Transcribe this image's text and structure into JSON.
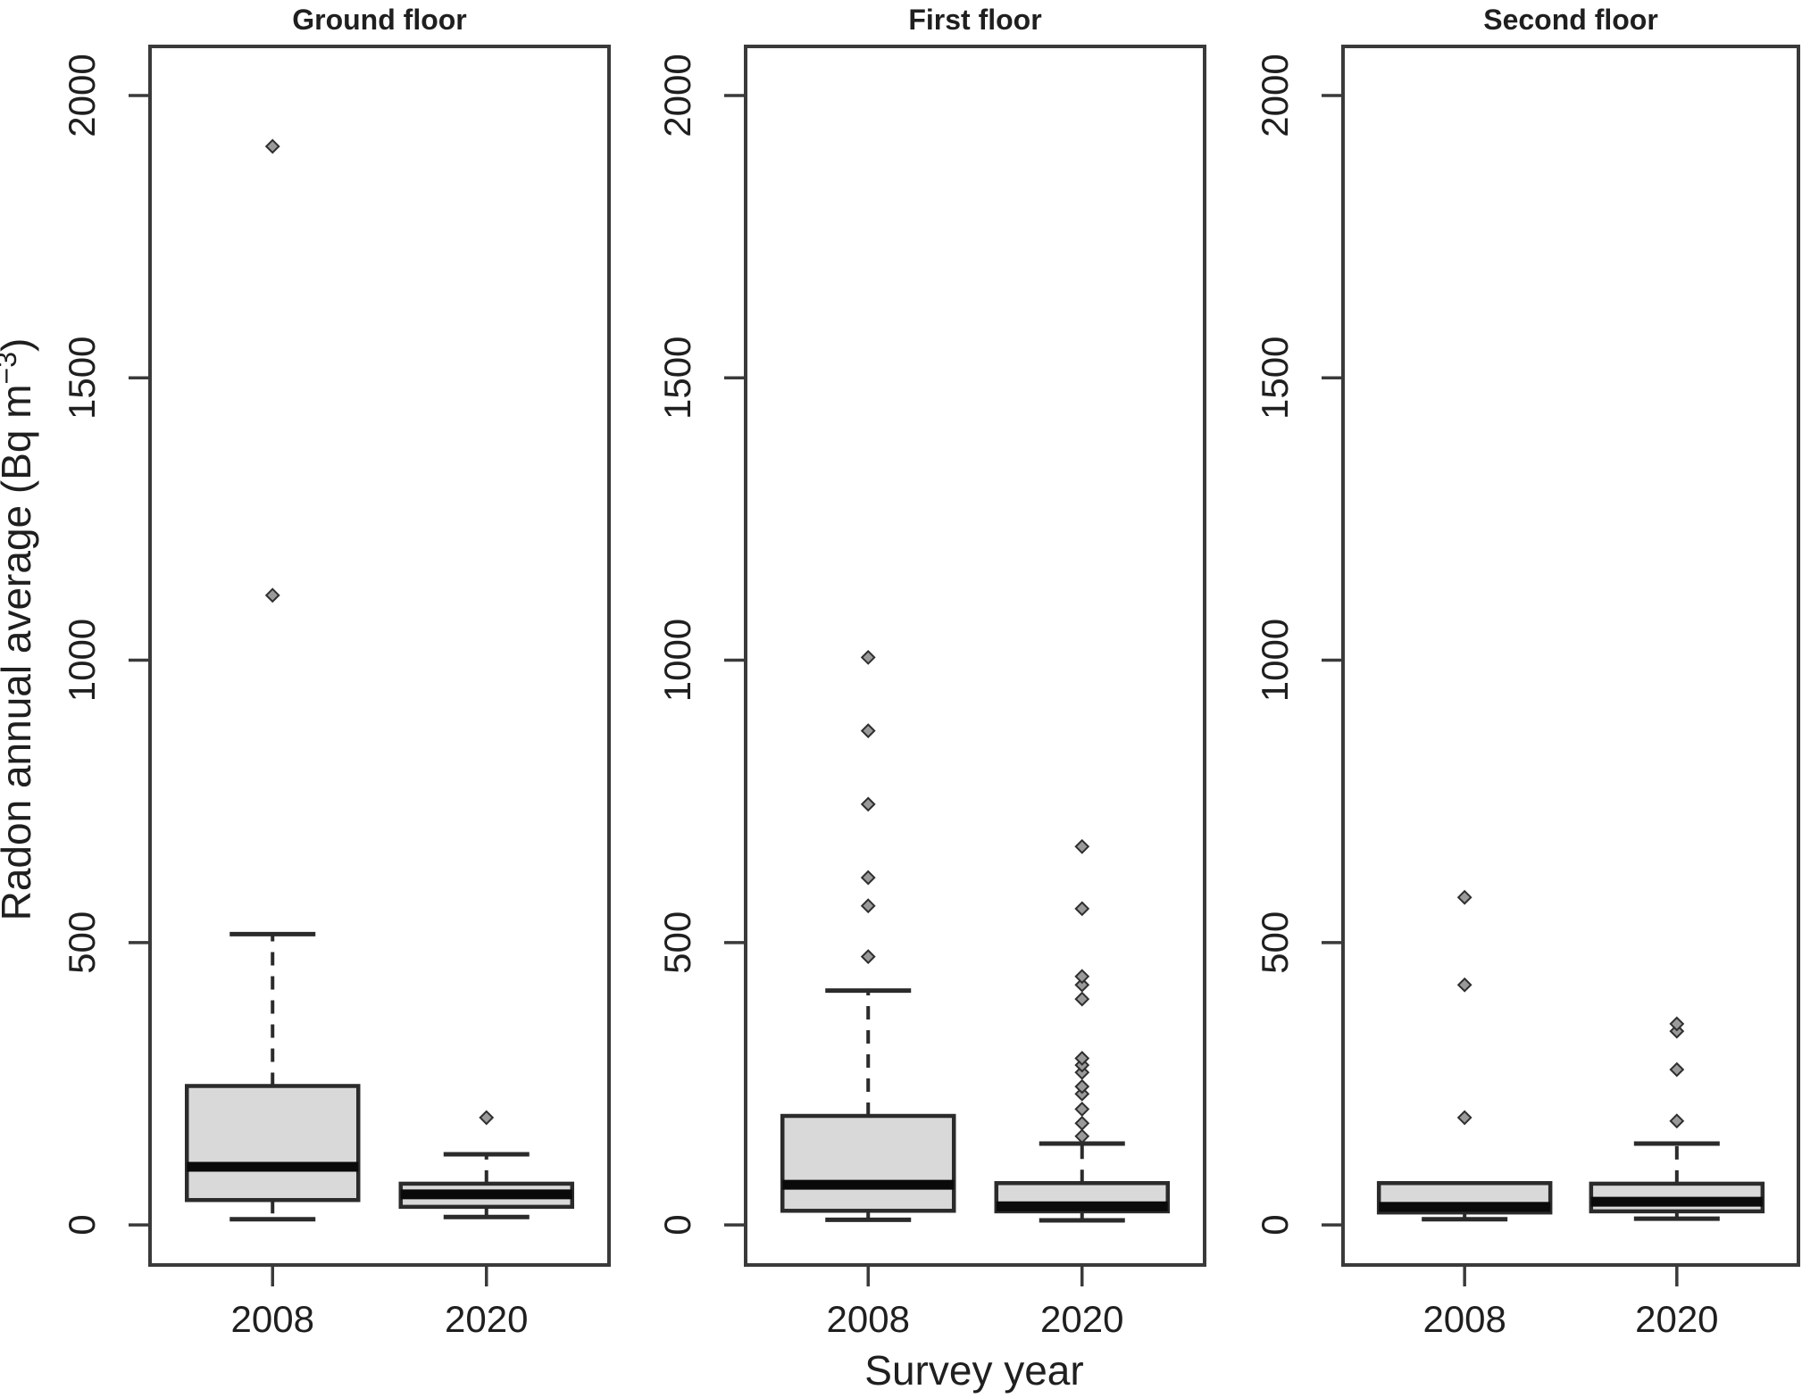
{
  "figure_title": "",
  "chart_data": {
    "type": "boxplot",
    "xlabel": "Survey year",
    "ylabel": "Radon annual average (Bq m⁻³)",
    "ylabel_parts": {
      "main": "Radon annual average (Bq m",
      "sup": "−3",
      "close": ")"
    },
    "y_ticks": [
      0,
      500,
      1000,
      1500,
      2000
    ],
    "ylim": [
      -71,
      2087
    ],
    "grid": false,
    "legend": "none",
    "categories": [
      "2008",
      "2020"
    ],
    "panels": [
      {
        "title": "Ground floor",
        "boxes": [
          {
            "year": "2008",
            "whisker_low": 10,
            "q1": 44,
            "median": 103,
            "q3": 246,
            "whisker_high": 515,
            "outliers": [
              1115,
              1910
            ]
          },
          {
            "year": "2020",
            "whisker_low": 14,
            "q1": 32,
            "median": 54,
            "q3": 73,
            "whisker_high": 125,
            "outliers": [
              190
            ]
          }
        ]
      },
      {
        "title": "First floor",
        "boxes": [
          {
            "year": "2008",
            "whisker_low": 9,
            "q1": 25,
            "median": 71,
            "q3": 193,
            "whisker_high": 415,
            "outliers": [
              475,
              565,
              615,
              745,
              875,
              1005
            ]
          },
          {
            "year": "2020",
            "whisker_low": 8,
            "q1": 24,
            "median": 33,
            "q3": 74,
            "whisker_high": 144,
            "outliers": [
              157,
              180,
              205,
              232,
              245,
              270,
              283,
              295,
              400,
              425,
              440,
              560,
              670
            ]
          }
        ]
      },
      {
        "title": "Second floor",
        "boxes": [
          {
            "year": "2008",
            "whisker_low": 10,
            "q1": 22,
            "median": 32,
            "q3": 74,
            "whisker_high": 74,
            "outliers": [
              190,
              425,
              580
            ]
          },
          {
            "year": "2020",
            "whisker_low": 11,
            "q1": 24,
            "median": 41,
            "q3": 73,
            "whisker_high": 144,
            "outliers": [
              184,
              275,
              343,
              356
            ]
          }
        ]
      }
    ]
  },
  "style": {
    "background": "#ffffff",
    "frame_color": "#3a3a3a",
    "line_color": "#2b2b2b",
    "text_color": "#1f1f1f",
    "box_fill": "#d9d9d9",
    "median_color": "#0a0a0a",
    "outlier_fill": "#9a9a9a",
    "outlier_stroke": "#2f2f2f"
  }
}
